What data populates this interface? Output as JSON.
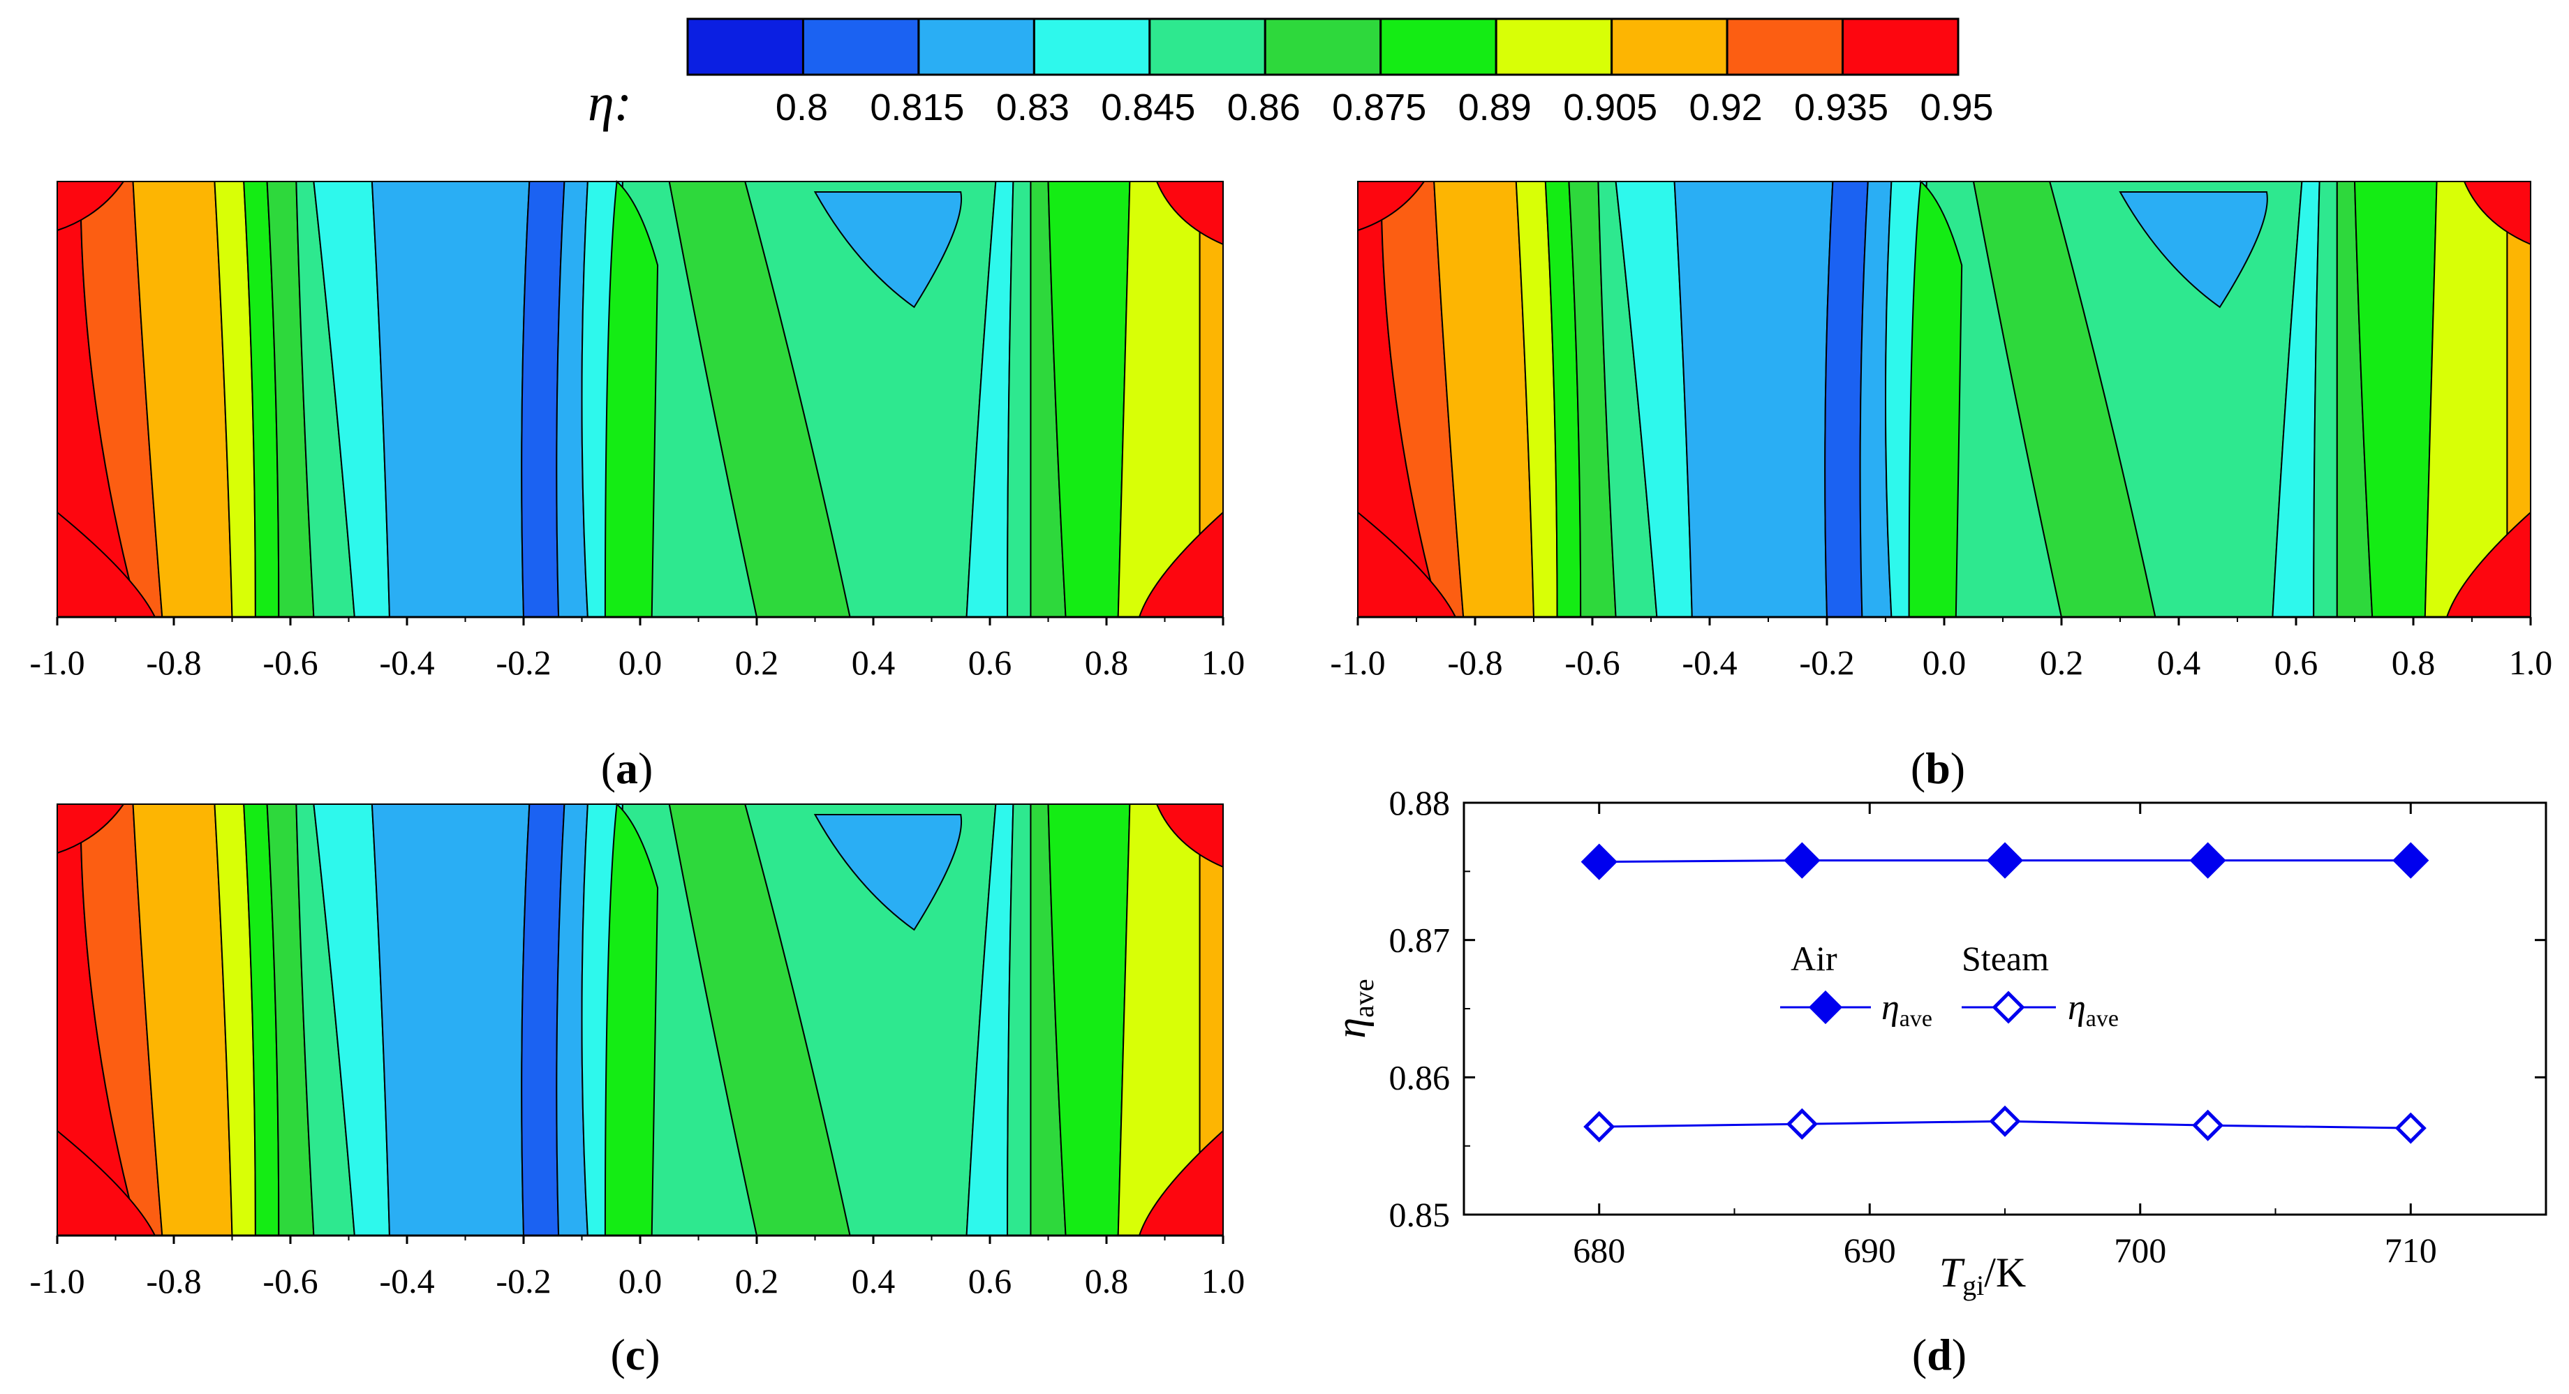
{
  "colorbar": {
    "symbol": "η:",
    "levels": [
      "0.8",
      "0.815",
      "0.83",
      "0.845",
      "0.86",
      "0.875",
      "0.89",
      "0.905",
      "0.92",
      "0.935",
      "0.95"
    ],
    "colors": [
      "#0b1fe2",
      "#1b62f2",
      "#2aaef4",
      "#2ef8ec",
      "#2ee88f",
      "#2ed83c",
      "#14ec14",
      "#d8ff06",
      "#fdb502",
      "#fc5e12",
      "#fd060f"
    ]
  },
  "panels": {
    "a": {
      "open": "(",
      "label": "a",
      "close": ")"
    },
    "b": {
      "open": "(",
      "label": "b",
      "close": ")"
    },
    "c": {
      "open": "(",
      "label": "c",
      "close": ")"
    },
    "d": {
      "open": "(",
      "label": "d",
      "close": ")"
    }
  },
  "contour_axis": {
    "ticks": [
      "-1.0",
      "-0.8",
      "-0.6",
      "-0.4",
      "-0.2",
      "0.0",
      "0.2",
      "0.4",
      "0.6",
      "0.8",
      "1.0"
    ]
  },
  "chart_data": [
    {
      "type": "contour",
      "panel": "a",
      "xlim": [
        -1.0,
        1.0
      ],
      "band_boundaries_x": [
        -0.96,
        -0.83,
        -0.72,
        -0.67,
        -0.63,
        -0.58,
        -0.54,
        -0.45,
        -0.19,
        -0.14,
        -0.11,
        -0.06,
        0.09,
        0.22,
        0.58,
        0.63,
        0.67,
        0.72,
        0.83,
        0.96
      ],
      "band_values": [
        0.935,
        0.92,
        0.905,
        0.89,
        0.875,
        0.86,
        0.845,
        0.83,
        0.815,
        0.8,
        0.815,
        0.83,
        0.845,
        0.86,
        0.845,
        0.83,
        0.845,
        0.86,
        0.875,
        0.89,
        0.905,
        0.92,
        0.935
      ]
    },
    {
      "type": "contour",
      "panel": "b",
      "xlim": [
        -1.0,
        1.0
      ],
      "band_boundaries_x": [
        -0.96,
        -0.83,
        -0.72,
        -0.67,
        -0.63,
        -0.58,
        -0.54,
        -0.45,
        -0.19,
        -0.14,
        -0.11,
        -0.06,
        0.09,
        0.22,
        0.58,
        0.63,
        0.67,
        0.72,
        0.83,
        0.96
      ],
      "band_values": [
        0.935,
        0.92,
        0.905,
        0.89,
        0.875,
        0.86,
        0.845,
        0.83,
        0.815,
        0.8,
        0.815,
        0.83,
        0.845,
        0.86,
        0.845,
        0.83,
        0.845,
        0.86,
        0.875,
        0.89,
        0.905,
        0.92,
        0.935
      ]
    },
    {
      "type": "contour",
      "panel": "c",
      "xlim": [
        -1.0,
        1.0
      ],
      "band_boundaries_x": [
        -0.96,
        -0.83,
        -0.72,
        -0.67,
        -0.63,
        -0.58,
        -0.54,
        -0.45,
        -0.19,
        -0.14,
        -0.11,
        -0.06,
        0.09,
        0.22,
        0.58,
        0.63,
        0.67,
        0.72,
        0.83,
        0.96
      ],
      "band_values": [
        0.935,
        0.92,
        0.905,
        0.89,
        0.875,
        0.86,
        0.845,
        0.83,
        0.815,
        0.8,
        0.815,
        0.83,
        0.845,
        0.86,
        0.845,
        0.83,
        0.845,
        0.86,
        0.875,
        0.89,
        0.905,
        0.92,
        0.935
      ]
    },
    {
      "type": "line",
      "panel": "d",
      "x": [
        680,
        687.5,
        695,
        702.5,
        710
      ],
      "xlim": [
        675,
        715
      ],
      "ylim": [
        0.85,
        0.88
      ],
      "xticks": [
        "680",
        "690",
        "700",
        "710"
      ],
      "yticks": [
        "0.85",
        "0.86",
        "0.87",
        "0.88"
      ],
      "xlabel": {
        "main": "T",
        "sub": "gi",
        "unit": "/K"
      },
      "ylabel": {
        "main": "η",
        "sub": "ave"
      },
      "legend": {
        "air_title": "Air",
        "steam_title": "Steam",
        "entry_main": "η",
        "entry_sub": "ave"
      },
      "series": [
        {
          "name": "Air",
          "marker": "filled-diamond",
          "color": "#0000ee",
          "values": [
            0.8757,
            0.8758,
            0.8758,
            0.8758,
            0.8758
          ]
        },
        {
          "name": "Steam",
          "marker": "open-diamond",
          "color": "#0000ee",
          "values": [
            0.8564,
            0.8566,
            0.8568,
            0.8565,
            0.8563
          ]
        }
      ]
    }
  ]
}
